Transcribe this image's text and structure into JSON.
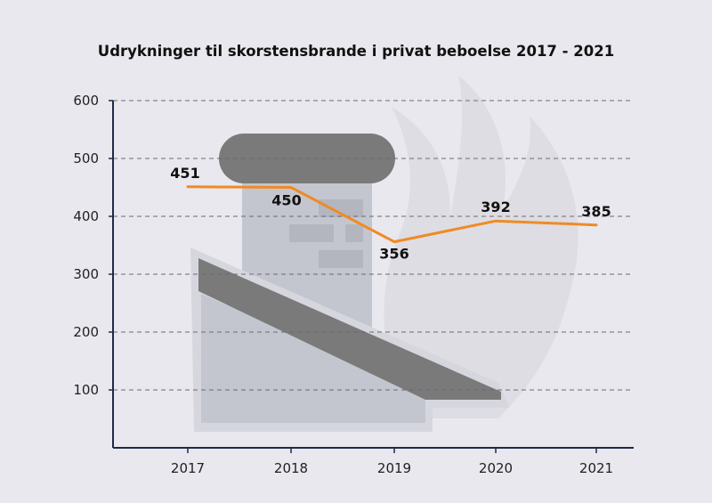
{
  "chart_data": {
    "type": "line",
    "title": "Udrykninger til skorstensbrande i privat beboelse 2017 - 2021",
    "xlabel": "",
    "ylabel": "",
    "categories": [
      "2017",
      "2018",
      "2019",
      "2020",
      "2021"
    ],
    "values": [
      451,
      450,
      356,
      392,
      385
    ],
    "data_labels": [
      "451",
      "450",
      "356",
      "392",
      "385"
    ],
    "ylim": [
      0,
      600
    ],
    "yticks": [
      100,
      200,
      300,
      400,
      500,
      600
    ],
    "ytick_labels": [
      "100",
      "200",
      "300",
      "400",
      "500",
      "600"
    ],
    "grid": "horizontal dashed",
    "legend": "none",
    "line_color": "#f08a24",
    "axis_color": "#1f2a4a",
    "background": "#e8e8ee",
    "background_illustration": "chimney-on-roof-with-flame"
  }
}
